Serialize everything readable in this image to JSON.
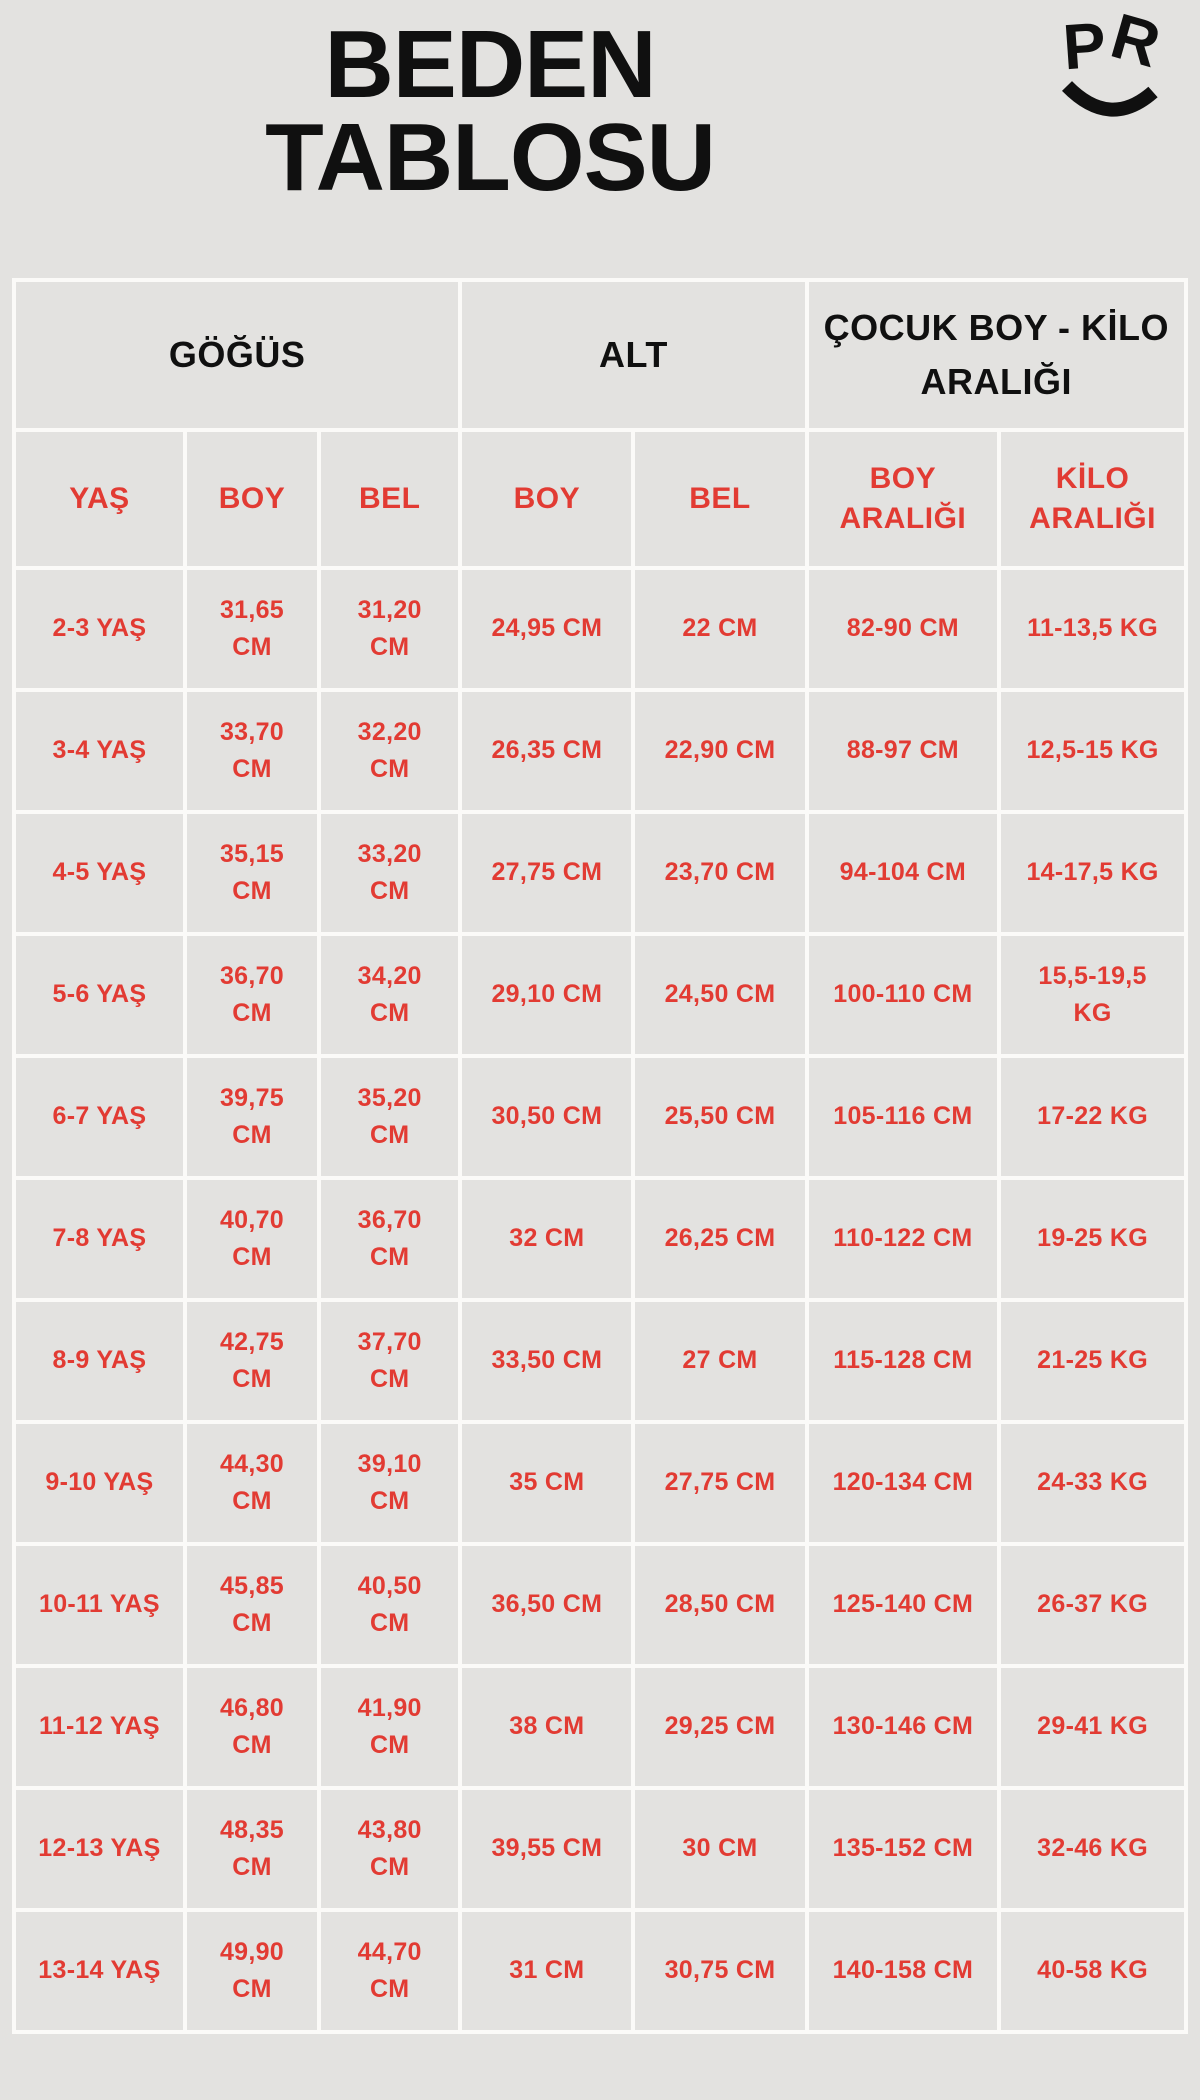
{
  "page": {
    "title": "BEDEN\nTABLOSU"
  },
  "logo": {
    "letter_p": "P",
    "letter_r": "R"
  },
  "table": {
    "group_headers": [
      {
        "label": "GÖĞÜS"
      },
      {
        "label": "ALT"
      },
      {
        "label": "ÇOCUK BOY - KİLO\nARALIĞI"
      }
    ],
    "column_headers": [
      "YAŞ",
      "BOY",
      "BEL",
      "BOY",
      "BEL",
      "BOY\nARALIĞI",
      "KİLO\nARALIĞI"
    ],
    "rows": [
      [
        "2-3 YAŞ",
        "31,65\nCM",
        "31,20\nCM",
        "24,95 CM",
        "22 CM",
        "82-90 CM",
        "11-13,5 KG"
      ],
      [
        "3-4 YAŞ",
        "33,70\nCM",
        "32,20\nCM",
        "26,35 CM",
        "22,90 CM",
        "88-97 CM",
        "12,5-15 KG"
      ],
      [
        "4-5 YAŞ",
        "35,15\nCM",
        "33,20\nCM",
        "27,75 CM",
        "23,70 CM",
        "94-104 CM",
        "14-17,5 KG"
      ],
      [
        "5-6 YAŞ",
        "36,70\nCM",
        "34,20\nCM",
        "29,10 CM",
        "24,50 CM",
        "100-110 CM",
        "15,5-19,5\nKG"
      ],
      [
        "6-7 YAŞ",
        "39,75\nCM",
        "35,20\nCM",
        "30,50 CM",
        "25,50 CM",
        "105-116 CM",
        "17-22 KG"
      ],
      [
        "7-8 YAŞ",
        "40,70\nCM",
        "36,70\nCM",
        "32 CM",
        "26,25 CM",
        "110-122 CM",
        "19-25 KG"
      ],
      [
        "8-9 YAŞ",
        "42,75\nCM",
        "37,70\nCM",
        "33,50 CM",
        "27 CM",
        "115-128 CM",
        "21-25 KG"
      ],
      [
        "9-10 YAŞ",
        "44,30\nCM",
        "39,10\nCM",
        "35 CM",
        "27,75 CM",
        "120-134 CM",
        "24-33 KG"
      ],
      [
        "10-11 YAŞ",
        "45,85\nCM",
        "40,50\nCM",
        "36,50 CM",
        "28,50 CM",
        "125-140 CM",
        "26-37 KG"
      ],
      [
        "11-12 YAŞ",
        "46,80\nCM",
        "41,90\nCM",
        "38 CM",
        "29,25 CM",
        "130-146 CM",
        "29-41 KG"
      ],
      [
        "12-13 YAŞ",
        "48,35\nCM",
        "43,80\nCM",
        "39,55 CM",
        "30 CM",
        "135-152 CM",
        "32-46 KG"
      ],
      [
        "13-14 YAŞ",
        "49,90\nCM",
        "44,70\nCM",
        "31 CM",
        "30,75 CM",
        "140-158 CM",
        "40-58 KG"
      ]
    ]
  },
  "colors": {
    "accent_red": "#e23b33",
    "text_black": "#101010",
    "background": "#e3e2e0",
    "grid_line": "#fbfaf8"
  }
}
